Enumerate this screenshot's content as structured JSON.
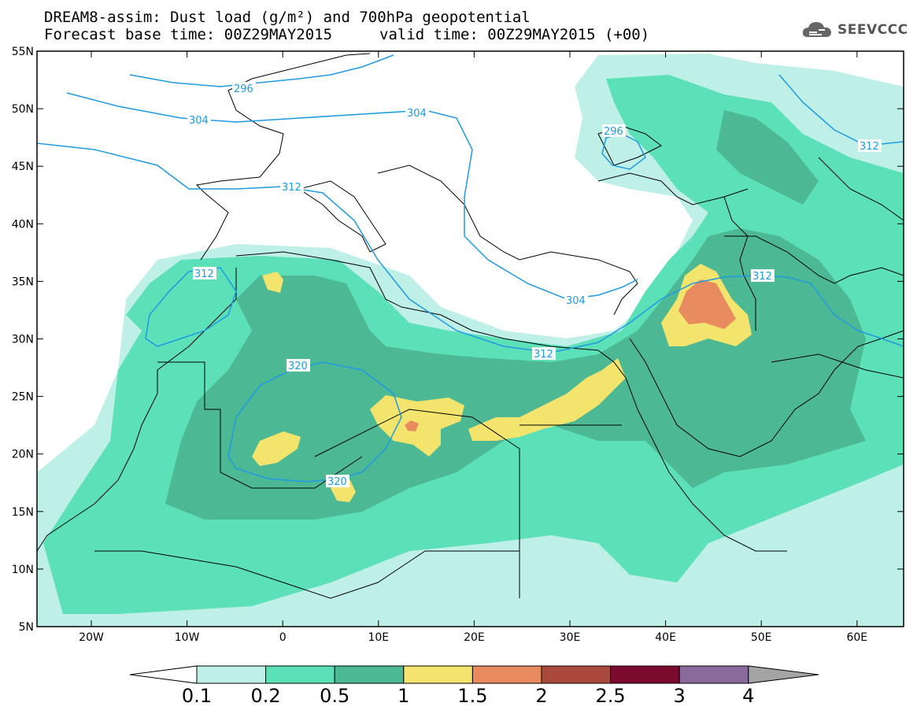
{
  "title": {
    "line1": "DREAM8-assim: Dust load (g/m²) and 700hPa geopotential",
    "line2": "Forecast base time: 00Z29MAY2015",
    "line2b": "valid time: 00Z29MAY2015 (+00)"
  },
  "logo": {
    "text": "SEEVCCC",
    "icon": "cloud-icon"
  },
  "axes": {
    "lat_labels": [
      "55N",
      "50N",
      "45N",
      "40N",
      "35N",
      "30N",
      "25N",
      "20N",
      "15N",
      "10N",
      "5N"
    ],
    "lon_labels": [
      "20W",
      "10W",
      "0",
      "10E",
      "20E",
      "30E",
      "40E",
      "50E",
      "60E"
    ]
  },
  "contour_labels": [
    "296",
    "304",
    "312",
    "320",
    "296",
    "304",
    "312",
    "312",
    "312",
    "320",
    "304",
    "312"
  ],
  "colorbar": {
    "ticks": [
      "0.1",
      "0.2",
      "0.5",
      "1",
      "1.5",
      "2",
      "2.5",
      "3",
      "4"
    ],
    "colors": [
      "#ffffff",
      "#bff0e8",
      "#5ce0b8",
      "#4db894",
      "#f2e46c",
      "#e88c60",
      "#aa4a3c",
      "#7a0a2e",
      "#8a6a9c",
      "#a4a4a4"
    ]
  },
  "dust_colors": {
    "c01": "#bff0e8",
    "c02": "#5ce0b8",
    "c05": "#4db894",
    "c1": "#f2e46c",
    "c15": "#e88c60",
    "c2": "#aa4a3c"
  },
  "contour_color": "#1f9ae0"
}
